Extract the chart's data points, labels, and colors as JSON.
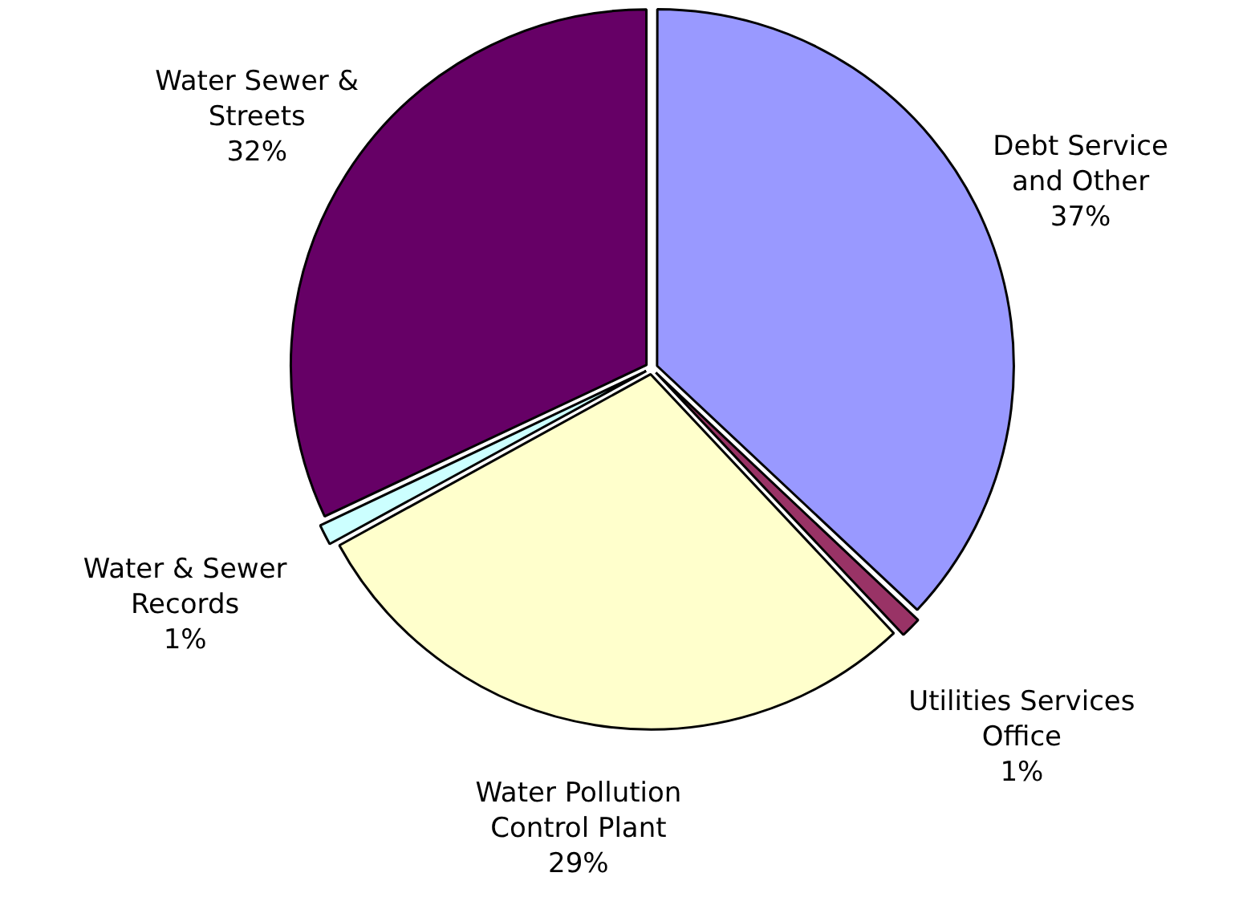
{
  "chart_data": {
    "type": "pie",
    "categories": [
      "Debt Service\nand Other",
      "Utilities Services\nOffice",
      "Water Pollution\nControl Plant",
      "Water & Sewer\nRecords",
      "Water Sewer &\nStreets"
    ],
    "values": [
      37,
      1,
      29,
      1,
      32
    ],
    "colors": [
      "#9999ff",
      "#993366",
      "#ffffcc",
      "#ccffff",
      "#660066"
    ],
    "value_labels": [
      "37%",
      "1%",
      "29%",
      "1%",
      "32%"
    ],
    "legend": false
  }
}
